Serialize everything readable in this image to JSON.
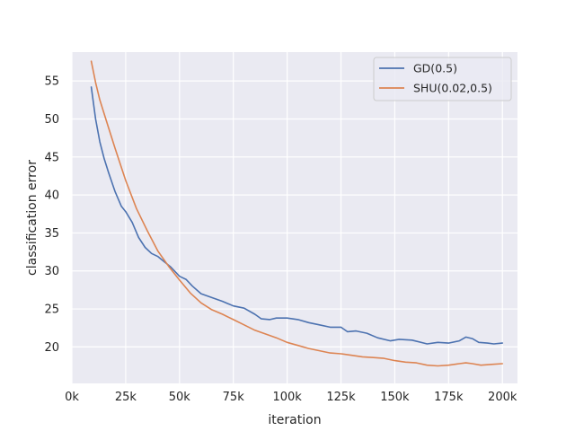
{
  "chart_data": {
    "type": "line",
    "title": "",
    "xlabel": "iteration",
    "ylabel": "classification error",
    "xlim": [
      0,
      207000
    ],
    "ylim": [
      15.2,
      58.8
    ],
    "grid": true,
    "legend_position": "top-right",
    "x_ticks": [
      {
        "value": 0,
        "label": "0k"
      },
      {
        "value": 25000,
        "label": "25k"
      },
      {
        "value": 50000,
        "label": "50k"
      },
      {
        "value": 75000,
        "label": "75k"
      },
      {
        "value": 100000,
        "label": "100k"
      },
      {
        "value": 125000,
        "label": "125k"
      },
      {
        "value": 150000,
        "label": "150k"
      },
      {
        "value": 175000,
        "label": "175k"
      },
      {
        "value": 200000,
        "label": "200k"
      }
    ],
    "y_ticks": [
      {
        "value": 20,
        "label": "20"
      },
      {
        "value": 25,
        "label": "25"
      },
      {
        "value": 30,
        "label": "30"
      },
      {
        "value": 35,
        "label": "35"
      },
      {
        "value": 40,
        "label": "40"
      },
      {
        "value": 45,
        "label": "45"
      },
      {
        "value": 50,
        "label": "50"
      },
      {
        "value": 55,
        "label": "55"
      }
    ],
    "series": [
      {
        "name": "GD(0.5)",
        "color": "#4c72b0",
        "x": [
          9000,
          11000,
          13000,
          15000,
          17000,
          20000,
          23000,
          25000,
          28000,
          31000,
          34000,
          37000,
          40000,
          43000,
          46000,
          50000,
          53000,
          56000,
          60000,
          65000,
          70000,
          75000,
          80000,
          85000,
          88000,
          92000,
          95000,
          100000,
          105000,
          110000,
          115000,
          120000,
          125000,
          128000,
          132000,
          137000,
          142000,
          148000,
          152000,
          158000,
          165000,
          170000,
          175000,
          180000,
          183000,
          186000,
          189000,
          193000,
          196000,
          200000
        ],
        "y": [
          54.2,
          50.0,
          47.0,
          44.8,
          43.0,
          40.5,
          38.5,
          37.8,
          36.4,
          34.4,
          33.1,
          32.3,
          31.9,
          31.2,
          30.5,
          29.3,
          28.9,
          28.0,
          27.0,
          26.5,
          26.0,
          25.4,
          25.1,
          24.3,
          23.7,
          23.6,
          23.8,
          23.8,
          23.6,
          23.2,
          22.9,
          22.6,
          22.6,
          22.0,
          22.1,
          21.8,
          21.2,
          20.8,
          21.0,
          20.9,
          20.4,
          20.6,
          20.5,
          20.8,
          21.3,
          21.1,
          20.6,
          20.5,
          20.4,
          20.5
        ]
      },
      {
        "name": "SHU(0.02,0.5)",
        "color": "#dd8452",
        "x": [
          9000,
          11000,
          13000,
          16000,
          20000,
          25000,
          30000,
          35000,
          40000,
          45000,
          50000,
          55000,
          60000,
          65000,
          70000,
          75000,
          80000,
          85000,
          90000,
          95000,
          100000,
          105000,
          110000,
          115000,
          120000,
          125000,
          130000,
          135000,
          140000,
          145000,
          150000,
          155000,
          160000,
          165000,
          170000,
          175000,
          180000,
          183000,
          186000,
          190000,
          195000,
          200000
        ],
        "y": [
          57.6,
          54.8,
          52.5,
          49.8,
          46.2,
          41.9,
          38.2,
          35.3,
          32.6,
          30.6,
          28.8,
          27.1,
          25.8,
          24.9,
          24.3,
          23.6,
          22.9,
          22.2,
          21.7,
          21.2,
          20.6,
          20.2,
          19.8,
          19.5,
          19.2,
          19.1,
          18.9,
          18.7,
          18.6,
          18.5,
          18.2,
          18.0,
          17.9,
          17.6,
          17.5,
          17.6,
          17.8,
          17.9,
          17.8,
          17.6,
          17.7,
          17.8
        ]
      }
    ]
  }
}
